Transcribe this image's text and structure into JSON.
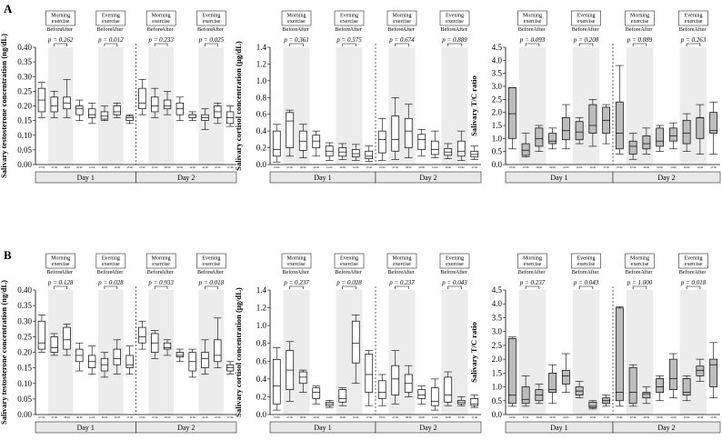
{
  "panel_labels": [
    "A",
    "B"
  ],
  "chart_data": [
    {
      "type": "box",
      "panel": "A",
      "ylabel": "Salivary testosterone concentration (ng/dL)",
      "ylim": [
        0,
        0.4
      ],
      "yticks": [
        "0.00",
        "0.05",
        "0.10",
        "0.15",
        "0.20",
        "0.25",
        "0.30",
        "0.35",
        "0.40"
      ],
      "groups": [
        "Day 1",
        "Day 2"
      ],
      "exercise_labels": [
        "Morning\nexercise",
        "Evening\nexercise"
      ],
      "before_after": [
        "Before",
        "After"
      ],
      "p_values": [
        "p = 0.262",
        "p = 0.012",
        "p = 0.233",
        "p = 0.025"
      ],
      "time_labels": [
        "07:00",
        "07:30",
        "08:30",
        "09:30",
        "11:00",
        "16:00",
        "16:30",
        "17:30",
        "19:00"
      ],
      "fill": "#ffffff",
      "boxes": [
        [
          [
            0.16,
            0.18,
            0.22,
            0.26,
            0.28
          ],
          [
            0.16,
            0.18,
            0.2,
            0.23,
            0.25
          ],
          [
            0.16,
            0.19,
            0.21,
            0.23,
            0.29
          ],
          [
            0.15,
            0.17,
            0.19,
            0.2,
            0.22
          ],
          [
            0.14,
            0.16,
            0.17,
            0.19,
            0.21
          ],
          [
            0.15,
            0.155,
            0.165,
            0.18,
            0.2
          ],
          [
            0.16,
            0.17,
            0.18,
            0.2,
            0.21
          ],
          [
            0.14,
            0.15,
            0.16,
            0.165,
            0.17
          ]
        ],
        [
          [
            0.17,
            0.19,
            0.21,
            0.26,
            0.29
          ],
          [
            0.16,
            0.18,
            0.2,
            0.23,
            0.26
          ],
          [
            0.17,
            0.19,
            0.2,
            0.22,
            0.25
          ],
          [
            0.15,
            0.17,
            0.19,
            0.21,
            0.23
          ],
          [
            0.15,
            0.16,
            0.17,
            0.17,
            0.18
          ],
          [
            0.12,
            0.15,
            0.16,
            0.17,
            0.19
          ],
          [
            0.14,
            0.16,
            0.18,
            0.2,
            0.21
          ],
          [
            0.13,
            0.14,
            0.16,
            0.18,
            0.2
          ]
        ]
      ]
    },
    {
      "type": "box",
      "panel": "A",
      "ylabel": "Salivary cortisol concentration (μg/dL)",
      "ylim": [
        0,
        1.4
      ],
      "yticks": [
        "0.0",
        "0.2",
        "0.4",
        "0.6",
        "0.8",
        "1.0",
        "1.2",
        "1.4"
      ],
      "groups": [
        "Day 1",
        "Day 2"
      ],
      "exercise_labels": [
        "Morning\nexercise",
        "Evening\nexercise"
      ],
      "before_after": [
        "Before",
        "After"
      ],
      "p_values": [
        "p = 0.361",
        "p = 0.575",
        "p = 0.674",
        "p = 0.889"
      ],
      "time_labels": [
        "07:00",
        "07:30",
        "08:30",
        "09:30",
        "11:00",
        "16:00",
        "16:30",
        "17:30",
        "19:00"
      ],
      "fill": "#ffffff",
      "boxes": [
        [
          [
            0.03,
            0.1,
            0.18,
            0.4,
            0.48
          ],
          [
            0.1,
            0.2,
            0.52,
            0.62,
            0.65
          ],
          [
            0.08,
            0.17,
            0.28,
            0.4,
            0.48
          ],
          [
            0.1,
            0.2,
            0.28,
            0.35,
            0.4
          ],
          [
            0.05,
            0.1,
            0.16,
            0.22,
            0.26
          ],
          [
            0.06,
            0.1,
            0.15,
            0.2,
            0.25
          ],
          [
            0.05,
            0.09,
            0.13,
            0.18,
            0.24
          ],
          [
            0.04,
            0.07,
            0.1,
            0.16,
            0.22
          ]
        ],
        [
          [
            0.05,
            0.14,
            0.3,
            0.4,
            0.55
          ],
          [
            0.06,
            0.16,
            0.3,
            0.58,
            0.8
          ],
          [
            0.08,
            0.2,
            0.4,
            0.55,
            0.72
          ],
          [
            0.1,
            0.18,
            0.3,
            0.36,
            0.42
          ],
          [
            0.08,
            0.12,
            0.18,
            0.28,
            0.4
          ],
          [
            0.07,
            0.11,
            0.15,
            0.19,
            0.25
          ],
          [
            0.05,
            0.1,
            0.16,
            0.28,
            0.4
          ],
          [
            0.06,
            0.09,
            0.12,
            0.16,
            0.22
          ]
        ]
      ]
    },
    {
      "type": "box",
      "panel": "A",
      "ylabel": "Salivary T/C ratio",
      "ylim": [
        0,
        4.5
      ],
      "yticks": [
        "0.0",
        "0.5",
        "1.0",
        "1.5",
        "2.0",
        "2.5",
        "3.0",
        "3.5",
        "4.0",
        "4.5"
      ],
      "groups": [
        "Day 1",
        "Day 2"
      ],
      "exercise_labels": [
        "Morning\nexercise",
        "Evening\nexercise"
      ],
      "before_after": [
        "Before",
        "After"
      ],
      "p_values": [
        "p = 0.093",
        "p = 0.208",
        "p = 0.889",
        "p = 0.263"
      ],
      "time_labels": [
        "07:00",
        "07:30",
        "08:30",
        "09:30",
        "11:00",
        "16:00",
        "16:30",
        "17:30",
        "19:00"
      ],
      "fill": "#bdbdbd",
      "boxes": [
        [
          [
            0.6,
            1.0,
            1.95,
            2.95,
            2.95
          ],
          [
            0.3,
            0.35,
            0.55,
            0.8,
            1.2
          ],
          [
            0.5,
            0.7,
            1.0,
            1.4,
            1.5
          ],
          [
            0.6,
            0.8,
            0.9,
            1.2,
            1.4
          ],
          [
            0.6,
            0.95,
            1.3,
            1.8,
            2.3
          ],
          [
            0.8,
            0.95,
            1.25,
            1.65,
            1.8
          ],
          [
            0.7,
            1.2,
            1.5,
            2.3,
            2.5
          ],
          [
            0.8,
            1.2,
            1.7,
            2.2,
            2.3
          ]
        ],
        [
          [
            0.4,
            0.6,
            1.2,
            2.4,
            3.8
          ],
          [
            0.2,
            0.4,
            0.7,
            0.9,
            1.2
          ],
          [
            0.4,
            0.6,
            0.8,
            1.1,
            1.4
          ],
          [
            0.5,
            0.7,
            0.9,
            1.4,
            1.5
          ],
          [
            0.6,
            0.9,
            1.1,
            1.4,
            1.6
          ],
          [
            0.5,
            0.8,
            1.2,
            1.7,
            1.95
          ],
          [
            0.4,
            1.0,
            1.8,
            1.8,
            2.3
          ],
          [
            0.4,
            1.2,
            1.3,
            2.0,
            2.4
          ]
        ]
      ]
    },
    {
      "type": "box",
      "panel": "B",
      "ylabel": "Salivary testosterone concentration (ng/dL)",
      "ylim": [
        0,
        0.4
      ],
      "yticks": [
        "0.00",
        "0.05",
        "0.10",
        "0.15",
        "0.20",
        "0.25",
        "0.30",
        "0.35",
        "0.40"
      ],
      "groups": [
        "Day 1",
        "Day 2"
      ],
      "exercise_labels": [
        "Morning\nexercise",
        "Evening\nexercise"
      ],
      "before_after": [
        "Before",
        "After"
      ],
      "p_values": [
        "p = 0.128",
        "p = 0.028",
        "p = 0.933",
        "p = 0.018"
      ],
      "time_labels": [
        "07:00",
        "07:30",
        "08:30",
        "09:30",
        "11:00",
        "16:00",
        "16:30",
        "17:30",
        "19:00"
      ],
      "fill": "#ffffff",
      "boxes": [
        [
          [
            0.2,
            0.21,
            0.23,
            0.3,
            0.32
          ],
          [
            0.19,
            0.2,
            0.215,
            0.25,
            0.26
          ],
          [
            0.19,
            0.21,
            0.24,
            0.28,
            0.29
          ],
          [
            0.14,
            0.17,
            0.19,
            0.21,
            0.23
          ],
          [
            0.13,
            0.15,
            0.17,
            0.19,
            0.22
          ],
          [
            0.12,
            0.14,
            0.16,
            0.18,
            0.2
          ],
          [
            0.13,
            0.16,
            0.18,
            0.21,
            0.24
          ],
          [
            0.13,
            0.15,
            0.16,
            0.19,
            0.22
          ]
        ],
        [
          [
            0.21,
            0.23,
            0.25,
            0.28,
            0.3
          ],
          [
            0.18,
            0.2,
            0.23,
            0.26,
            0.27
          ],
          [
            0.19,
            0.21,
            0.215,
            0.23,
            0.24
          ],
          [
            0.17,
            0.185,
            0.19,
            0.2,
            0.21
          ],
          [
            0.12,
            0.14,
            0.17,
            0.2,
            0.21
          ],
          [
            0.13,
            0.15,
            0.18,
            0.2,
            0.24
          ],
          [
            0.15,
            0.17,
            0.19,
            0.24,
            0.31
          ],
          [
            0.13,
            0.14,
            0.15,
            0.16,
            0.17
          ]
        ]
      ]
    },
    {
      "type": "box",
      "panel": "B",
      "ylabel": "Salivary cortisol concentration (μg/dL)",
      "ylim": [
        0,
        1.4
      ],
      "yticks": [
        "0.0",
        "0.2",
        "0.4",
        "0.6",
        "0.8",
        "1.0",
        "1.2",
        "1.4"
      ],
      "groups": [
        "Day 1",
        "Day 2"
      ],
      "exercise_labels": [
        "Morning\nexercise",
        "Evening\nexercise"
      ],
      "before_after": [
        "Before",
        "After"
      ],
      "p_values": [
        "p = 0.237",
        "p = 0.028",
        "p = 0.237",
        "p = 0.043"
      ],
      "time_labels": [
        "07:00",
        "07:30",
        "08:30",
        "09:30",
        "11:00",
        "16:00",
        "16:30",
        "17:30",
        "19:00"
      ],
      "fill": "#ffffff",
      "boxes": [
        [
          [
            0.05,
            0.12,
            0.32,
            0.62,
            0.75
          ],
          [
            0.15,
            0.28,
            0.5,
            0.72,
            0.82
          ],
          [
            0.25,
            0.35,
            0.42,
            0.48,
            0.5
          ],
          [
            0.12,
            0.18,
            0.25,
            0.3,
            0.32
          ],
          [
            0.08,
            0.1,
            0.12,
            0.14,
            0.16
          ],
          [
            0.1,
            0.14,
            0.18,
            0.28,
            0.3
          ],
          [
            0.35,
            0.58,
            0.8,
            1.05,
            1.12
          ],
          [
            0.1,
            0.25,
            0.45,
            0.68,
            0.72
          ]
        ],
        [
          [
            0.1,
            0.18,
            0.25,
            0.38,
            0.45
          ],
          [
            0.12,
            0.22,
            0.4,
            0.55,
            0.72
          ],
          [
            0.2,
            0.25,
            0.35,
            0.45,
            0.55
          ],
          [
            0.12,
            0.18,
            0.22,
            0.28,
            0.32
          ],
          [
            0.05,
            0.1,
            0.15,
            0.3,
            0.4
          ],
          [
            0.1,
            0.14,
            0.22,
            0.42,
            0.48
          ],
          [
            0.1,
            0.12,
            0.14,
            0.16,
            0.2
          ],
          [
            0.08,
            0.1,
            0.12,
            0.18,
            0.22
          ]
        ]
      ]
    },
    {
      "type": "box",
      "panel": "B",
      "ylabel": "Salivary T/C ratio",
      "ylim": [
        0,
        4.5
      ],
      "yticks": [
        "0.0",
        "0.5",
        "1.0",
        "1.5",
        "2.0",
        "2.5",
        "3.0",
        "3.5",
        "4.0",
        "4.5"
      ],
      "groups": [
        "Day 1",
        "Day 2"
      ],
      "exercise_labels": [
        "Morning\nexercise",
        "Evening\nexercise"
      ],
      "before_after": [
        "Before",
        "After"
      ],
      "p_values": [
        "p = 0.237",
        "p = 0.043",
        "p = 1.000",
        "p = 0.018"
      ],
      "time_labels": [
        "07:00",
        "07:30",
        "08:30",
        "09:30",
        "11:00",
        "16:00",
        "16:30",
        "17:30",
        "19:00"
      ],
      "fill": "#bdbdbd",
      "boxes": [
        [
          [
            0.3,
            0.4,
            0.7,
            2.75,
            2.8
          ],
          [
            0.3,
            0.4,
            0.55,
            1.0,
            1.4
          ],
          [
            0.4,
            0.5,
            0.7,
            0.9,
            1.1
          ],
          [
            0.4,
            0.8,
            0.9,
            1.5,
            1.8
          ],
          [
            0.8,
            1.1,
            1.4,
            1.6,
            2.2
          ],
          [
            0.6,
            0.7,
            0.85,
            1.0,
            1.2
          ],
          [
            0.2,
            0.25,
            0.3,
            0.45,
            0.5
          ],
          [
            0.3,
            0.4,
            0.5,
            0.6,
            0.7
          ]
        ],
        [
          [
            0.3,
            0.5,
            0.8,
            3.85,
            3.9
          ],
          [
            0.3,
            0.4,
            0.8,
            1.7,
            1.8
          ],
          [
            0.4,
            0.6,
            0.75,
            0.8,
            1.0
          ],
          [
            0.5,
            0.8,
            1.0,
            1.3,
            1.4
          ],
          [
            0.6,
            0.9,
            1.3,
            2.0,
            2.2
          ],
          [
            0.5,
            0.7,
            0.8,
            1.3,
            1.4
          ],
          [
            1.2,
            1.4,
            1.6,
            1.75,
            2.0
          ],
          [
            0.6,
            1.0,
            1.8,
            2.0,
            2.6
          ]
        ]
      ]
    }
  ]
}
